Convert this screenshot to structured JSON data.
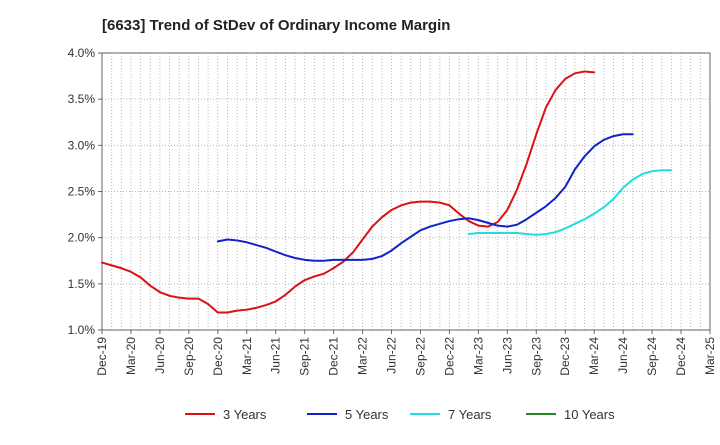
{
  "chart_data": {
    "type": "line",
    "title": "[6633]  Trend of StDev of Ordinary Income Margin",
    "xlabel": "",
    "ylabel": "",
    "x_ticks": [
      "Dec-19",
      "Mar-20",
      "Jun-20",
      "Sep-20",
      "Dec-20",
      "Mar-21",
      "Jun-21",
      "Sep-21",
      "Dec-21",
      "Mar-22",
      "Jun-22",
      "Sep-22",
      "Dec-22",
      "Mar-23",
      "Jun-23",
      "Sep-23",
      "Dec-23",
      "Mar-24",
      "Jun-24",
      "Sep-24",
      "Dec-24",
      "Mar-25"
    ],
    "y_ticks": [
      "1.0%",
      "1.5%",
      "2.0%",
      "2.5%",
      "3.0%",
      "3.5%",
      "4.0%"
    ],
    "ylim": [
      1.0,
      4.0
    ],
    "grid": true,
    "legend_position": "bottom",
    "series": [
      {
        "name": "3 Years",
        "color": "#dd1111",
        "start_index": 0,
        "values": [
          1.73,
          1.7,
          1.67,
          1.63,
          1.57,
          1.48,
          1.41,
          1.37,
          1.35,
          1.34,
          1.34,
          1.28,
          1.19,
          1.19,
          1.21,
          1.22,
          1.24,
          1.27,
          1.31,
          1.38,
          1.47,
          1.54,
          1.58,
          1.61,
          1.67,
          1.74,
          1.84,
          1.98,
          2.12,
          2.22,
          2.3,
          2.35,
          2.38,
          2.39,
          2.39,
          2.38,
          2.35,
          2.26,
          2.18,
          2.13,
          2.12,
          2.17,
          2.3,
          2.52,
          2.8,
          3.12,
          3.41,
          3.6,
          3.72,
          3.78,
          3.8,
          3.79
        ]
      },
      {
        "name": "5 Years",
        "color": "#1122cc",
        "start_index": 12,
        "values": [
          1.96,
          1.98,
          1.97,
          1.95,
          1.92,
          1.89,
          1.85,
          1.81,
          1.78,
          1.76,
          1.75,
          1.75,
          1.76,
          1.76,
          1.76,
          1.76,
          1.77,
          1.8,
          1.86,
          1.94,
          2.01,
          2.08,
          2.12,
          2.15,
          2.18,
          2.2,
          2.21,
          2.19,
          2.16,
          2.13,
          2.12,
          2.14,
          2.2,
          2.27,
          2.34,
          2.43,
          2.55,
          2.74,
          2.88,
          2.99,
          3.06,
          3.1,
          3.12,
          3.12
        ]
      },
      {
        "name": "7 Years",
        "color": "#22dddd",
        "start_index": 38,
        "values": [
          2.04,
          2.05,
          2.05,
          2.05,
          2.05,
          2.05,
          2.04,
          2.03,
          2.04,
          2.06,
          2.1,
          2.15,
          2.2,
          2.26,
          2.33,
          2.42,
          2.54,
          2.63,
          2.69,
          2.72,
          2.73,
          2.73
        ]
      },
      {
        "name": "10 Years",
        "color": "#228822",
        "start_index": 0,
        "values": []
      }
    ]
  }
}
